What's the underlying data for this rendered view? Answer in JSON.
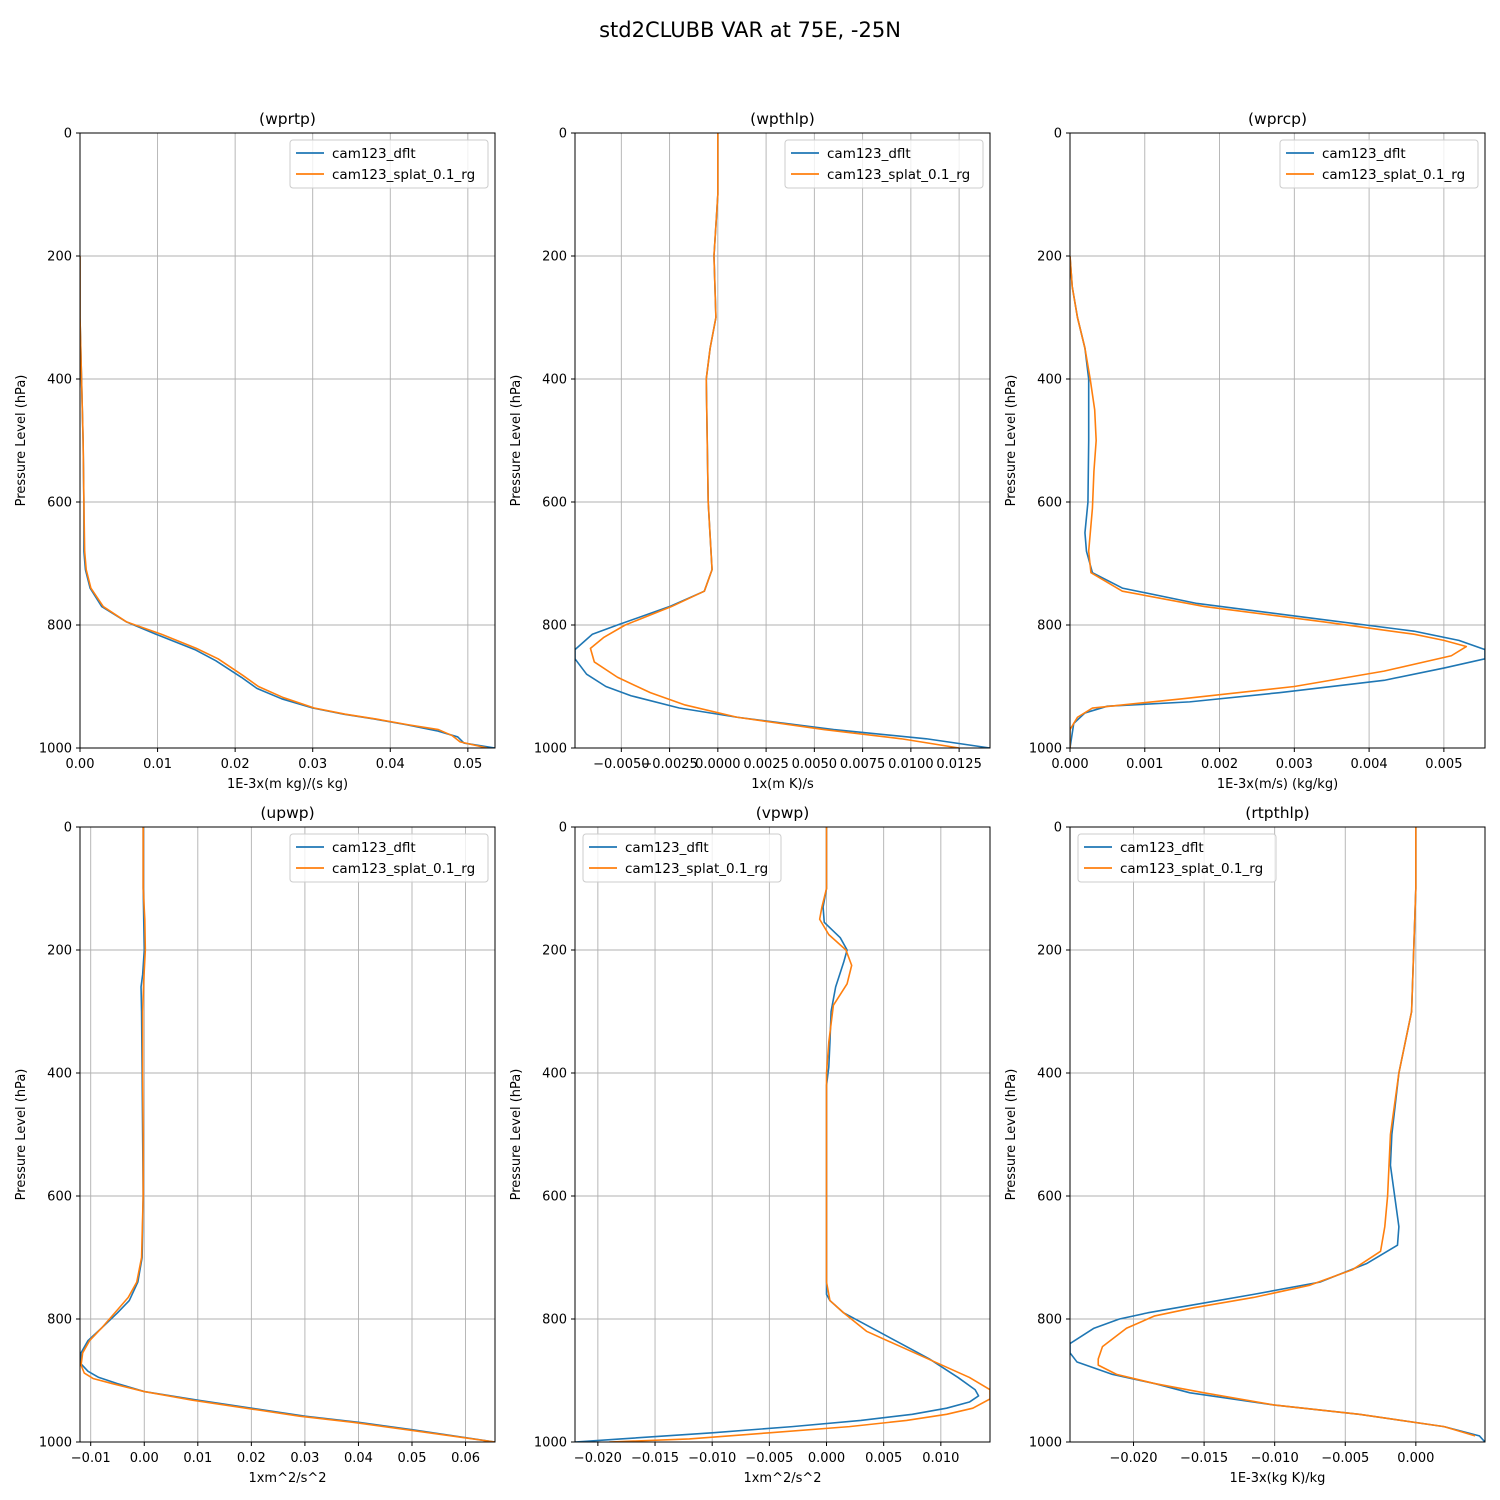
{
  "figure": {
    "title": "std2CLUBB VAR at 75E, -25N"
  },
  "colors": {
    "cam123_dflt": "#1f77b4",
    "cam123_splat_0.1_rg": "#ff7f0e"
  },
  "chart_data": [
    {
      "type": "line",
      "title": "(wprtp)",
      "xlabel": "1E-3x(m kg)/(s kg)",
      "ylabel": "Pressure Level (hPa)",
      "xlim": [
        0,
        0.0535
      ],
      "ylim": [
        1000,
        0
      ],
      "xticks": [
        0,
        0.01,
        0.02,
        0.03,
        0.04,
        0.05
      ],
      "xtick_labels": [
        "0.00",
        "0.01",
        "0.02",
        "0.03",
        "0.04",
        "0.05"
      ],
      "yticks": [
        0,
        200,
        400,
        600,
        800,
        1000
      ],
      "ytick_labels": [
        "0",
        "200",
        "400",
        "600",
        "800",
        "1000"
      ],
      "legend": {
        "loc": "upper-right"
      },
      "series": [
        {
          "name": "cam123_dflt",
          "x": [
            0,
            0,
            0.0002,
            0.0004,
            0.0005,
            0.0005,
            0.0007,
            0.0013,
            0.0028,
            0.006,
            0.0098,
            0.0148,
            0.0175,
            0.0208,
            0.0228,
            0.026,
            0.03,
            0.034,
            0.038,
            0.042,
            0.046,
            0.0487,
            0.0495,
            0.0535
          ],
          "y": [
            200,
            300,
            400,
            500,
            600,
            680,
            710,
            740,
            770,
            795,
            815,
            840,
            858,
            885,
            903,
            920,
            935,
            945,
            953,
            962,
            972,
            982,
            992,
            1000
          ]
        },
        {
          "name": "cam123_splat_0.1_rg",
          "x": [
            0,
            0,
            0.0002,
            0.0004,
            0.0005,
            0.0006,
            0.0008,
            0.0014,
            0.003,
            0.006,
            0.0105,
            0.015,
            0.0178,
            0.021,
            0.023,
            0.0262,
            0.0302,
            0.0342,
            0.0382,
            0.0422,
            0.0462,
            0.048,
            0.049,
            0.0525
          ],
          "y": [
            200,
            300,
            400,
            500,
            600,
            680,
            710,
            740,
            770,
            795,
            815,
            838,
            855,
            882,
            900,
            918,
            935,
            945,
            953,
            962,
            970,
            980,
            990,
            1000
          ]
        }
      ]
    },
    {
      "type": "line",
      "title": "(wpthlp)",
      "xlabel": "1x(m K)/s",
      "ylabel": "Pressure Level (hPa)",
      "xlim": [
        -0.0074,
        0.0141
      ],
      "ylim": [
        1000,
        0
      ],
      "xticks": [
        -0.005,
        -0.0025,
        0,
        0.0025,
        0.005,
        0.0075,
        0.01,
        0.0125
      ],
      "xtick_labels": [
        "−0.0050",
        "−0.0025",
        "0.0000",
        "0.0025",
        "0.0050",
        "0.0075",
        "0.0100",
        "0.0125"
      ],
      "yticks": [
        0,
        200,
        400,
        600,
        800,
        1000
      ],
      "ytick_labels": [
        "0",
        "200",
        "400",
        "600",
        "800",
        "1000"
      ],
      "legend": {
        "loc": "upper-right"
      },
      "series": [
        {
          "name": "cam123_dflt",
          "x": [
            0,
            0,
            -0.0002,
            -0.0001,
            -0.0004,
            -0.0006,
            -0.0005,
            -0.0003,
            -0.0007,
            -0.0025,
            -0.0052,
            -0.0065,
            -0.0074,
            -0.0074,
            -0.0068,
            -0.0058,
            -0.0045,
            -0.002,
            0.001,
            0.006,
            0.0108,
            0.0141
          ],
          "y": [
            0,
            100,
            200,
            300,
            350,
            400,
            600,
            710,
            745,
            770,
            800,
            815,
            840,
            855,
            880,
            900,
            915,
            935,
            950,
            970,
            985,
            1000
          ]
        },
        {
          "name": "cam123_splat_0.1_rg",
          "x": [
            0,
            0,
            -0.0002,
            -0.0001,
            -0.0004,
            -0.0006,
            -0.0005,
            -0.0003,
            -0.0007,
            -0.0024,
            -0.0048,
            -0.0059,
            -0.0066,
            -0.0064,
            -0.0052,
            -0.0035,
            -0.0017,
            0.001,
            0.0055,
            0.0095,
            0.0125
          ],
          "y": [
            0,
            100,
            200,
            300,
            350,
            400,
            600,
            710,
            745,
            770,
            800,
            820,
            838,
            860,
            885,
            910,
            930,
            950,
            970,
            985,
            1000
          ]
        }
      ]
    },
    {
      "type": "line",
      "title": "(wprcp)",
      "xlabel": "1E-3x(m/s) (kg/kg)",
      "ylabel": "Pressure Level (hPa)",
      "xlim": [
        0,
        0.00555
      ],
      "ylim": [
        1000,
        0
      ],
      "xticks": [
        0,
        0.001,
        0.002,
        0.003,
        0.004,
        0.005
      ],
      "xtick_labels": [
        "0.000",
        "0.001",
        "0.002",
        "0.003",
        "0.004",
        "0.005"
      ],
      "yticks": [
        0,
        200,
        400,
        600,
        800,
        1000
      ],
      "ytick_labels": [
        "0",
        "200",
        "400",
        "600",
        "800",
        "1000"
      ],
      "legend": {
        "loc": "upper-right"
      },
      "series": [
        {
          "name": "cam123_dflt",
          "x": [
            0,
            3e-05,
            0.0001,
            0.0002,
            0.00025,
            0.00025,
            0.00024,
            0.0002,
            0.00022,
            0.0003,
            0.0007,
            0.0017,
            0.0033,
            0.0046,
            0.0052,
            0.00555,
            0.00555,
            0.005,
            0.0042,
            0.0028,
            0.0016,
            0.0005,
            0.0002,
            5e-05,
            0
          ],
          "y": [
            200,
            250,
            300,
            350,
            400,
            500,
            600,
            650,
            680,
            715,
            740,
            765,
            790,
            810,
            825,
            840,
            855,
            870,
            890,
            910,
            925,
            932,
            943,
            960,
            1000
          ]
        },
        {
          "name": "cam123_splat_0.1_rg",
          "x": [
            0,
            3e-05,
            0.0001,
            0.0002,
            0.00027,
            0.00033,
            0.00035,
            0.00032,
            0.0003,
            0.00025,
            0.00028,
            0.0007,
            0.0018,
            0.0034,
            0.0046,
            0.005,
            0.0053,
            0.0051,
            0.0042,
            0.003,
            0.0015,
            0.0003,
            0.0001,
            0,
            0
          ],
          "y": [
            200,
            250,
            300,
            350,
            400,
            450,
            500,
            550,
            610,
            680,
            715,
            745,
            770,
            795,
            815,
            825,
            835,
            850,
            875,
            900,
            920,
            935,
            950,
            970,
            1000
          ]
        }
      ]
    },
    {
      "type": "line",
      "title": "(upwp)",
      "xlabel": "1xm^2/s^2",
      "ylabel": "Pressure Level (hPa)",
      "xlim": [
        -0.012,
        0.0655
      ],
      "ylim": [
        1000,
        0
      ],
      "xticks": [
        -0.01,
        0,
        0.01,
        0.02,
        0.03,
        0.04,
        0.05,
        0.06
      ],
      "xtick_labels": [
        "−0.01",
        "0.00",
        "0.01",
        "0.02",
        "0.03",
        "0.04",
        "0.05",
        "0.06"
      ],
      "yticks": [
        0,
        200,
        400,
        600,
        800,
        1000
      ],
      "ytick_labels": [
        "0",
        "200",
        "400",
        "600",
        "800",
        "1000"
      ],
      "legend": {
        "loc": "upper-right"
      },
      "series": [
        {
          "name": "cam123_dflt",
          "x": [
            -0.0002,
            -0.0002,
            0,
            -0.0003,
            -0.0006,
            -0.0005,
            -0.0004,
            -0.0003,
            -0.0002,
            -0.0004,
            -0.0012,
            -0.0028,
            -0.005,
            -0.008,
            -0.0105,
            -0.0118,
            -0.0118,
            -0.0105,
            -0.0085,
            -0.005,
            0,
            0.01,
            0.02,
            0.03,
            0.04,
            0.05,
            0.0655
          ],
          "y": [
            0,
            100,
            200,
            240,
            260,
            300,
            400,
            500,
            600,
            700,
            740,
            770,
            790,
            815,
            835,
            855,
            873,
            885,
            895,
            905,
            918,
            932,
            945,
            958,
            968,
            980,
            1000
          ]
        },
        {
          "name": "cam123_splat_0.1_rg",
          "x": [
            -0.0002,
            -0.0002,
            0.0001,
            0.0002,
            -0.0001,
            -0.0003,
            -0.0003,
            -0.0002,
            -0.0002,
            -0.0005,
            -0.0014,
            -0.003,
            -0.0055,
            -0.008,
            -0.0102,
            -0.0115,
            -0.0118,
            -0.0112,
            -0.0095,
            -0.006,
            0,
            0.009,
            0.019,
            0.029,
            0.039,
            0.049,
            0.0655
          ],
          "y": [
            0,
            100,
            150,
            200,
            250,
            300,
            400,
            500,
            600,
            700,
            740,
            765,
            790,
            815,
            835,
            855,
            875,
            888,
            897,
            905,
            918,
            932,
            945,
            958,
            968,
            980,
            1000
          ]
        }
      ]
    },
    {
      "type": "line",
      "title": "(vpwp)",
      "xlabel": "1xm^2/s^2",
      "ylabel": "Pressure Level (hPa)",
      "xlim": [
        -0.022,
        0.0143
      ],
      "ylim": [
        1000,
        0
      ],
      "xticks": [
        -0.02,
        -0.015,
        -0.01,
        -0.005,
        0,
        0.005,
        0.01
      ],
      "xtick_labels": [
        "−0.020",
        "−0.015",
        "−0.010",
        "−0.005",
        "0.000",
        "0.005",
        "0.010"
      ],
      "yticks": [
        0,
        200,
        400,
        600,
        800,
        1000
      ],
      "ytick_labels": [
        "0",
        "200",
        "400",
        "600",
        "800",
        "1000"
      ],
      "legend": {
        "loc": "upper-left"
      },
      "series": [
        {
          "name": "cam123_dflt",
          "x": [
            0,
            0,
            -0.0003,
            -0.0002,
            0.0012,
            0.0018,
            0.0015,
            0.0008,
            0.0004,
            0.0003,
            0.0002,
            0,
            0,
            0,
            0,
            0,
            0,
            0.0003,
            0.0015,
            0.004,
            0.0065,
            0.009,
            0.0115,
            0.013,
            0.0133,
            0.0125,
            0.0105,
            0.0075,
            0.003,
            -0.003,
            -0.01,
            -0.018,
            -0.022
          ],
          "y": [
            0,
            100,
            130,
            155,
            180,
            200,
            220,
            260,
            300,
            350,
            390,
            420,
            500,
            600,
            700,
            740,
            760,
            770,
            790,
            815,
            840,
            865,
            895,
            915,
            925,
            935,
            945,
            955,
            965,
            975,
            985,
            995,
            1000
          ]
        },
        {
          "name": "cam123_splat_0.1_rg",
          "x": [
            0,
            0,
            -0.0004,
            -0.0006,
            0.0002,
            0.0017,
            0.0022,
            0.0018,
            0.0006,
            0.0002,
            0,
            0,
            0,
            0,
            0,
            0.0003,
            0.0015,
            0.0035,
            0.0065,
            0.0095,
            0.0125,
            0.0143,
            0.0143,
            0.0128,
            0.0105,
            0.007,
            0.002,
            -0.005,
            -0.012,
            -0.019
          ],
          "y": [
            0,
            100,
            130,
            150,
            175,
            200,
            225,
            255,
            290,
            350,
            400,
            500,
            600,
            700,
            740,
            770,
            790,
            820,
            845,
            870,
            895,
            915,
            930,
            945,
            955,
            965,
            975,
            985,
            995,
            1000
          ]
        }
      ]
    },
    {
      "type": "line",
      "title": "(rtpthlp)",
      "xlabel": "1E-3x(kg K)/kg",
      "ylabel": "Pressure Level (hPa)",
      "xlim": [
        -0.0245,
        0.0049
      ],
      "ylim": [
        1000,
        0
      ],
      "xticks": [
        -0.02,
        -0.015,
        -0.01,
        -0.005,
        0
      ],
      "xtick_labels": [
        "−0.020",
        "−0.015",
        "−0.010",
        "−0.005",
        "0.000"
      ],
      "yticks": [
        0,
        200,
        400,
        600,
        800,
        1000
      ],
      "ytick_labels": [
        "0",
        "200",
        "400",
        "600",
        "800",
        "1000"
      ],
      "legend": {
        "loc": "upper-left"
      },
      "series": [
        {
          "name": "cam123_dflt",
          "x": [
            0,
            0,
            -0.0003,
            -0.0012,
            -0.0017,
            -0.0018,
            -0.0015,
            -0.0012,
            -0.0013,
            -0.0035,
            -0.0068,
            -0.0115,
            -0.016,
            -0.019,
            -0.021,
            -0.0228,
            -0.0245,
            -0.0245,
            -0.024,
            -0.0215,
            -0.0185,
            -0.016,
            -0.01,
            -0.004,
            0.002,
            0.0045,
            0.0049
          ],
          "y": [
            0,
            100,
            300,
            400,
            500,
            550,
            600,
            650,
            680,
            710,
            740,
            760,
            778,
            790,
            800,
            815,
            840,
            855,
            870,
            890,
            905,
            920,
            940,
            955,
            975,
            990,
            1000
          ]
        },
        {
          "name": "cam123_splat_0.1_rg",
          "x": [
            0,
            0,
            -0.0003,
            -0.0012,
            -0.0018,
            -0.002,
            -0.0022,
            -0.0025,
            -0.0045,
            -0.0075,
            -0.0115,
            -0.0158,
            -0.0185,
            -0.0205,
            -0.0222,
            -0.0225,
            -0.0225,
            -0.0212,
            -0.0185,
            -0.015,
            -0.01,
            -0.004,
            0.002,
            0.0042
          ],
          "y": [
            0,
            100,
            300,
            400,
            500,
            600,
            650,
            690,
            720,
            745,
            765,
            782,
            795,
            815,
            845,
            865,
            875,
            890,
            905,
            920,
            940,
            955,
            975,
            990
          ]
        }
      ]
    }
  ]
}
